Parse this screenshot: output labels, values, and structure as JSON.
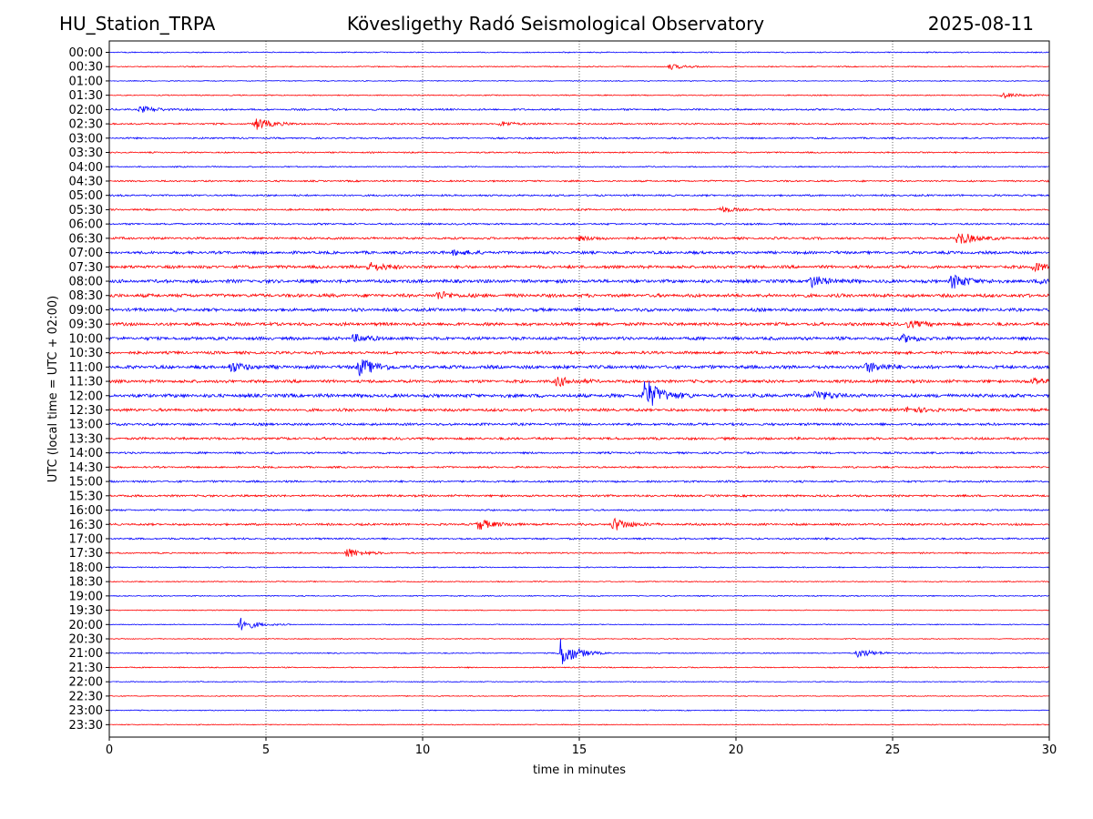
{
  "header": {
    "station": "HU_Station_TRPA",
    "observatory": "Kövesligethy Radó Seismological Observatory",
    "date": "2025-08-11"
  },
  "chart_data": {
    "type": "line",
    "title": "Kövesligethy Radó Seismological Observatory",
    "xlabel": "time in minutes",
    "ylabel": "UTC (local time = UTC + 02:00)",
    "xlim": [
      0,
      30
    ],
    "x_ticks": [
      0,
      5,
      10,
      15,
      20,
      25,
      30
    ],
    "grid": "vertical dotted lines at 5, 10, 15, 20, 25 minutes",
    "colors": {
      "even_hour_rows": "#0000ff",
      "half_hour_rows": "#ff0000"
    },
    "row_labels": [
      "00:00",
      "00:30",
      "01:00",
      "01:30",
      "02:00",
      "02:30",
      "03:00",
      "03:30",
      "04:00",
      "04:30",
      "05:00",
      "05:30",
      "06:00",
      "06:30",
      "07:00",
      "07:30",
      "08:00",
      "08:30",
      "09:00",
      "09:30",
      "10:00",
      "10:30",
      "11:00",
      "11:30",
      "12:00",
      "12:30",
      "13:00",
      "13:30",
      "14:00",
      "14:30",
      "15:00",
      "15:30",
      "16:00",
      "16:30",
      "17:00",
      "17:30",
      "18:00",
      "18:30",
      "19:00",
      "19:30",
      "20:00",
      "20:30",
      "21:00",
      "21:30",
      "22:00",
      "22:30",
      "23:00",
      "23:30"
    ],
    "row_noise": [
      0.6,
      0.6,
      0.5,
      0.6,
      1.0,
      0.9,
      0.9,
      0.8,
      0.7,
      0.9,
      1.0,
      1.0,
      1.0,
      1.3,
      1.6,
      1.7,
      1.9,
      1.9,
      1.8,
      1.8,
      1.8,
      1.6,
      1.9,
      1.7,
      2.0,
      1.6,
      1.4,
      1.4,
      1.1,
      1.0,
      1.1,
      1.2,
      0.9,
      1.2,
      1.0,
      0.8,
      0.6,
      0.6,
      0.6,
      0.5,
      0.5,
      0.5,
      0.6,
      0.6,
      0.5,
      0.5,
      0.5,
      0.5
    ],
    "events": [
      {
        "row": "00:30",
        "minute": 17.9,
        "amplitude": 3.0
      },
      {
        "row": "01:30",
        "minute": 28.5,
        "amplitude": 3.0
      },
      {
        "row": "02:00",
        "minute": 1.0,
        "amplitude": 3.5
      },
      {
        "row": "02:30",
        "minute": 4.7,
        "amplitude": 6.5
      },
      {
        "row": "02:30",
        "minute": 12.5,
        "amplitude": 2.5
      },
      {
        "row": "05:30",
        "minute": 19.5,
        "amplitude": 3.0
      },
      {
        "row": "06:30",
        "minute": 27.1,
        "amplitude": 7.5
      },
      {
        "row": "06:30",
        "minute": 15.0,
        "amplitude": 2.5
      },
      {
        "row": "07:00",
        "minute": 11.0,
        "amplitude": 3.0
      },
      {
        "row": "07:30",
        "minute": 8.3,
        "amplitude": 5.0
      },
      {
        "row": "07:30",
        "minute": 29.5,
        "amplitude": 4.5
      },
      {
        "row": "08:00",
        "minute": 22.4,
        "amplitude": 6.0
      },
      {
        "row": "08:00",
        "minute": 26.9,
        "amplitude": 8.0
      },
      {
        "row": "08:00",
        "minute": 29.8,
        "amplitude": 4.0
      },
      {
        "row": "08:30",
        "minute": 10.5,
        "amplitude": 4.0
      },
      {
        "row": "09:30",
        "minute": 25.5,
        "amplitude": 3.5
      },
      {
        "row": "10:00",
        "minute": 25.3,
        "amplitude": 4.0
      },
      {
        "row": "10:00",
        "minute": 7.8,
        "amplitude": 4.0
      },
      {
        "row": "11:00",
        "minute": 8.0,
        "amplitude": 10.0
      },
      {
        "row": "11:00",
        "minute": 24.2,
        "amplitude": 6.0
      },
      {
        "row": "11:00",
        "minute": 3.9,
        "amplitude": 5.0
      },
      {
        "row": "11:30",
        "minute": 14.3,
        "amplitude": 5.0
      },
      {
        "row": "11:30",
        "minute": 29.5,
        "amplitude": 3.5
      },
      {
        "row": "12:00",
        "minute": 17.1,
        "amplitude": 18.0
      },
      {
        "row": "12:00",
        "minute": 22.5,
        "amplitude": 5.5
      },
      {
        "row": "12:30",
        "minute": 25.5,
        "amplitude": 3.5
      },
      {
        "row": "16:30",
        "minute": 11.8,
        "amplitude": 6.0
      },
      {
        "row": "16:30",
        "minute": 16.1,
        "amplitude": 7.0
      },
      {
        "row": "17:30",
        "minute": 7.6,
        "amplitude": 5.5
      },
      {
        "row": "20:00",
        "minute": 4.2,
        "amplitude": 7.0
      },
      {
        "row": "21:00",
        "minute": 14.4,
        "amplitude": 16.0
      },
      {
        "row": "21:00",
        "minute": 23.9,
        "amplitude": 5.0
      }
    ]
  }
}
